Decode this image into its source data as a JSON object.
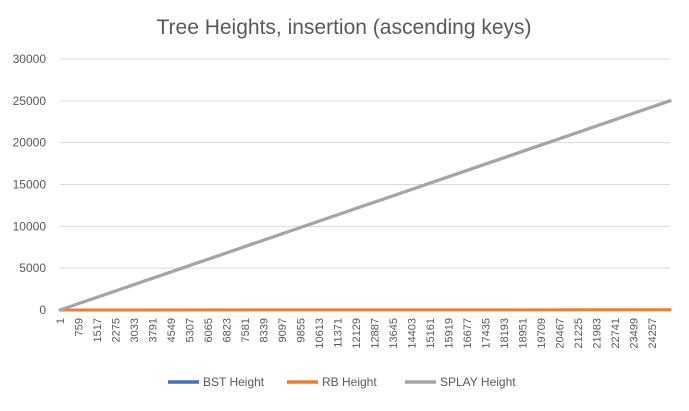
{
  "chart_data": {
    "type": "line",
    "title": "Tree Heights, insertion (ascending keys)",
    "xlabel": "",
    "ylabel": "",
    "ylim": [
      0,
      30000
    ],
    "yticks": [
      0,
      5000,
      10000,
      15000,
      20000,
      25000,
      30000
    ],
    "xlim": [
      1,
      25000
    ],
    "xticks": [
      1,
      759,
      1517,
      2275,
      3033,
      3791,
      4549,
      5307,
      6065,
      6823,
      7581,
      8339,
      9097,
      9855,
      10613,
      11371,
      12129,
      12887,
      13645,
      14403,
      15161,
      15919,
      16677,
      17435,
      18193,
      18951,
      19709,
      20467,
      21225,
      21983,
      22741,
      23499,
      24257
    ],
    "grid": true,
    "legend_position": "bottom",
    "series": [
      {
        "name": "BST Height",
        "color": "#4472c4",
        "x": [
          1,
          25000
        ],
        "values": [
          0,
          25000
        ]
      },
      {
        "name": "RB Height",
        "color": "#ed7d31",
        "x": [
          1,
          25000
        ],
        "values": [
          0,
          27
        ]
      },
      {
        "name": "SPLAY Height",
        "color": "#a5a5a5",
        "x": [
          1,
          25000
        ],
        "values": [
          0,
          25000
        ]
      }
    ]
  }
}
